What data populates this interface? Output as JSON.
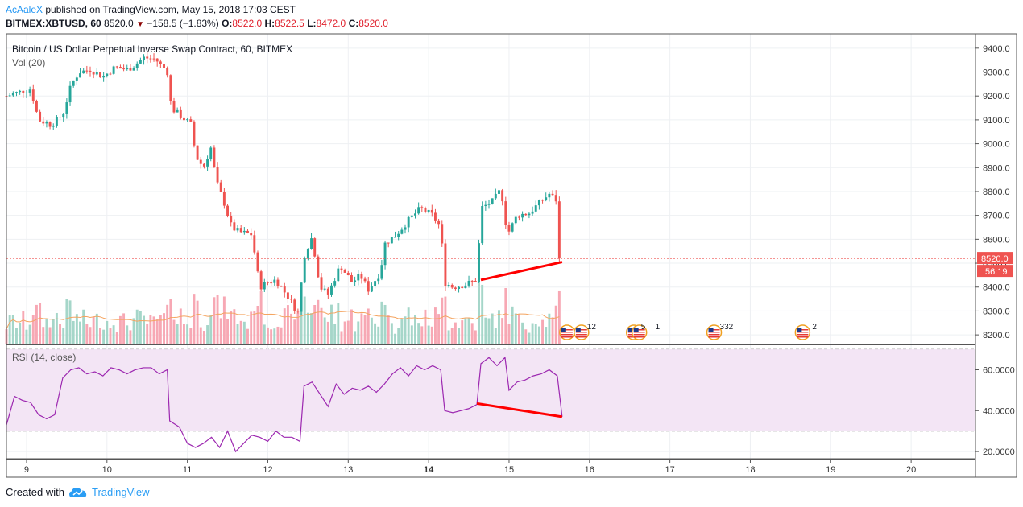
{
  "header": {
    "author": "AcAaleX",
    "published": " published on TradingView.com, May 15, 2018 17:03 CEST",
    "symbol": "BITMEX:XBTUSD, 60",
    "last": "8520.0",
    "change": "−158.5 (−1.83%)",
    "o_label": "O:",
    "o": "8522.0",
    "h_label": "H:",
    "h": "8522.5",
    "l_label": "L:",
    "l": "8472.0",
    "c_label": "C:",
    "c": "8520.0"
  },
  "main_pane": {
    "title": "Bitcoin / US Dollar Perpetual Inverse Swap Contract, 60, BITMEX",
    "vol_label": "Vol (20)",
    "price_tag": "8520.0",
    "countdown": "56:19",
    "event_labels": [
      "12",
      "5",
      "1",
      "332",
      "2"
    ]
  },
  "rsi_pane": {
    "label": "RSI (14, close)"
  },
  "footer": {
    "created_with": "Created with",
    "brand": "TradingView"
  },
  "colors": {
    "up": "#26a69a",
    "down": "#ef5350",
    "vol_up": "#a5d6c9",
    "vol_down": "#f7a8b4",
    "vol_ma": "#f4a460",
    "rsi_line": "#9c27b0",
    "rsi_band": "#f3e5f5",
    "trendline": "#ff0000",
    "price_tag_bg": "#ef5350"
  },
  "chart_data": [
    {
      "type": "candlestick",
      "title": "Bitcoin / US Dollar Perpetual Inverse Swap Contract, 60, BITMEX",
      "x_ticks": [
        "9",
        "10",
        "11",
        "12",
        "13",
        "14",
        "15",
        "16",
        "17",
        "18",
        "19",
        "20"
      ],
      "y_ticks": [
        "8200.0",
        "8300.0",
        "8400.0",
        "8500.0",
        "8600.0",
        "8700.0",
        "8800.0",
        "8900.0",
        "9000.0",
        "9100.0",
        "9200.0",
        "9300.0",
        "9400.0"
      ],
      "ylim": [
        8160,
        9460
      ],
      "xlim": [
        8.75,
        20.8
      ],
      "close_path": [
        [
          8.75,
          9200
        ],
        [
          9.05,
          9230
        ],
        [
          9.15,
          9100
        ],
        [
          9.3,
          9080
        ],
        [
          9.45,
          9120
        ],
        [
          9.55,
          9240
        ],
        [
          9.65,
          9300
        ],
        [
          9.8,
          9310
        ],
        [
          9.95,
          9280
        ],
        [
          10.1,
          9320
        ],
        [
          10.25,
          9310
        ],
        [
          10.35,
          9330
        ],
        [
          10.45,
          9360
        ],
        [
          10.6,
          9355
        ],
        [
          10.75,
          9300
        ],
        [
          10.8,
          9150
        ],
        [
          10.9,
          9120
        ],
        [
          11.05,
          9080
        ],
        [
          11.1,
          8950
        ],
        [
          11.2,
          8900
        ],
        [
          11.3,
          8990
        ],
        [
          11.35,
          8850
        ],
        [
          11.45,
          8760
        ],
        [
          11.55,
          8650
        ],
        [
          11.65,
          8630
        ],
        [
          11.8,
          8620
        ],
        [
          11.9,
          8400
        ],
        [
          12.0,
          8420
        ],
        [
          12.1,
          8430
        ],
        [
          12.25,
          8360
        ],
        [
          12.38,
          8290
        ],
        [
          12.45,
          8530
        ],
        [
          12.55,
          8610
        ],
        [
          12.65,
          8400
        ],
        [
          12.75,
          8370
        ],
        [
          12.9,
          8490
        ],
        [
          13.05,
          8420
        ],
        [
          13.15,
          8450
        ],
        [
          13.25,
          8390
        ],
        [
          13.4,
          8460
        ],
        [
          13.45,
          8580
        ],
        [
          13.6,
          8620
        ],
        [
          13.75,
          8680
        ],
        [
          13.9,
          8730
        ],
        [
          14.05,
          8700
        ],
        [
          14.15,
          8650
        ],
        [
          14.2,
          8420
        ],
        [
          14.3,
          8400
        ],
        [
          14.45,
          8410
        ],
        [
          14.6,
          8430
        ],
        [
          14.65,
          8730
        ],
        [
          14.8,
          8760
        ],
        [
          14.9,
          8810
        ],
        [
          14.98,
          8620
        ],
        [
          15.1,
          8700
        ],
        [
          15.25,
          8710
        ],
        [
          15.4,
          8760
        ],
        [
          15.5,
          8790
        ],
        [
          15.6,
          8760
        ],
        [
          15.66,
          8520
        ]
      ],
      "divergence_line": {
        "from": [
          14.65,
          8430
        ],
        "to": [
          15.66,
          8505
        ]
      },
      "last_price": 8520.0
    },
    {
      "type": "line",
      "title": "RSI (14, close)",
      "y_ticks": [
        "20.0000",
        "40.0000",
        "60.0000"
      ],
      "ylim": [
        16.5,
        72
      ],
      "bands": [
        30,
        70
      ],
      "values": [
        [
          8.75,
          33
        ],
        [
          8.85,
          47
        ],
        [
          8.95,
          45
        ],
        [
          9.05,
          44
        ],
        [
          9.15,
          38
        ],
        [
          9.25,
          36
        ],
        [
          9.35,
          38
        ],
        [
          9.45,
          56
        ],
        [
          9.55,
          60
        ],
        [
          9.65,
          61
        ],
        [
          9.75,
          58
        ],
        [
          9.85,
          59
        ],
        [
          9.95,
          57
        ],
        [
          10.05,
          61
        ],
        [
          10.15,
          60
        ],
        [
          10.25,
          58
        ],
        [
          10.35,
          60
        ],
        [
          10.45,
          61
        ],
        [
          10.55,
          61
        ],
        [
          10.65,
          58
        ],
        [
          10.75,
          60
        ],
        [
          10.78,
          35
        ],
        [
          10.9,
          32
        ],
        [
          11.0,
          24
        ],
        [
          11.1,
          22
        ],
        [
          11.2,
          24
        ],
        [
          11.3,
          27
        ],
        [
          11.4,
          22
        ],
        [
          11.5,
          30
        ],
        [
          11.6,
          20
        ],
        [
          11.7,
          24
        ],
        [
          11.8,
          28
        ],
        [
          11.9,
          27
        ],
        [
          12.0,
          25
        ],
        [
          12.1,
          30
        ],
        [
          12.2,
          27
        ],
        [
          12.3,
          27
        ],
        [
          12.4,
          25
        ],
        [
          12.45,
          52
        ],
        [
          12.55,
          54
        ],
        [
          12.65,
          48
        ],
        [
          12.75,
          42
        ],
        [
          12.85,
          53
        ],
        [
          12.95,
          48
        ],
        [
          13.05,
          51
        ],
        [
          13.15,
          50
        ],
        [
          13.25,
          52
        ],
        [
          13.35,
          49
        ],
        [
          13.45,
          53
        ],
        [
          13.55,
          58
        ],
        [
          13.65,
          61
        ],
        [
          13.75,
          57
        ],
        [
          13.85,
          62
        ],
        [
          13.95,
          60
        ],
        [
          14.05,
          62
        ],
        [
          14.15,
          60
        ],
        [
          14.2,
          40
        ],
        [
          14.3,
          39
        ],
        [
          14.4,
          40
        ],
        [
          14.5,
          41
        ],
        [
          14.6,
          43
        ],
        [
          14.65,
          63
        ],
        [
          14.75,
          66
        ],
        [
          14.85,
          62
        ],
        [
          14.95,
          66
        ],
        [
          15.0,
          50
        ],
        [
          15.1,
          54
        ],
        [
          15.2,
          55
        ],
        [
          15.3,
          57
        ],
        [
          15.4,
          58
        ],
        [
          15.5,
          60
        ],
        [
          15.6,
          57
        ],
        [
          15.66,
          37
        ]
      ],
      "divergence_line": {
        "from": [
          14.6,
          43.5
        ],
        "to": [
          15.66,
          37
        ]
      }
    }
  ]
}
